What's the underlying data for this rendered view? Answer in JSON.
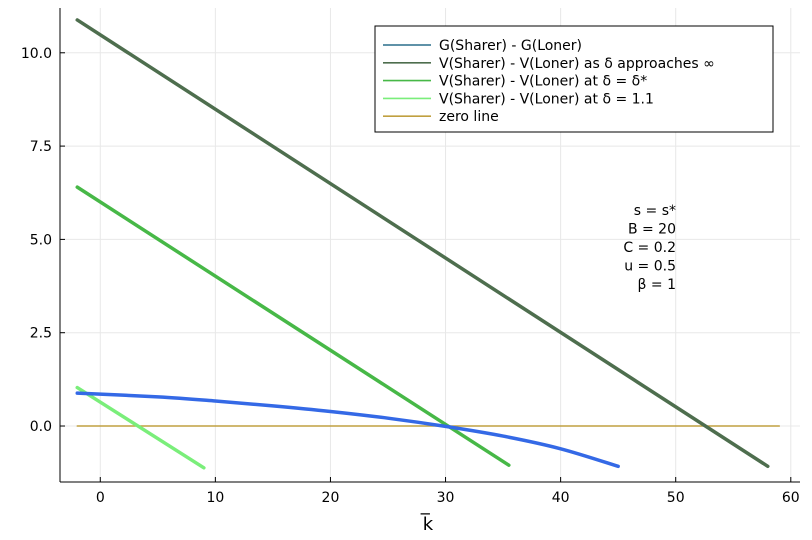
{
  "chart_data": {
    "type": "line",
    "xlabel": "k̅",
    "ylabel": "",
    "title": "",
    "xlim": [
      -3.5,
      60.8
    ],
    "ylim": [
      -1.5,
      11.2
    ],
    "xticks": [
      0,
      10,
      20,
      30,
      40,
      50,
      60
    ],
    "yticks": [
      0.0,
      2.5,
      5.0,
      7.5,
      10.0
    ],
    "xtick_labels": [
      "0",
      "10",
      "20",
      "30",
      "40",
      "50",
      "60"
    ],
    "ytick_labels": [
      "0.0",
      "2.5",
      "5.0",
      "7.5",
      "10.0"
    ],
    "grid": true,
    "legend_position": "top-right",
    "series": [
      {
        "name": "G(Sharer) - G(Loner)",
        "color": "#3469e6",
        "legend_color": "#2a6e8c",
        "x": [
          -2,
          5,
          10,
          15,
          20,
          25,
          30,
          35,
          40,
          45
        ],
        "y": [
          0.88,
          0.78,
          0.67,
          0.54,
          0.39,
          0.21,
          -0.01,
          -0.27,
          -0.61,
          -1.08
        ]
      },
      {
        "name": "V(Sharer) - V(Loner) as δ approaches ∞",
        "color": "#4e6e4e",
        "legend_color": "#4e6e4e",
        "x": [
          -2,
          58
        ],
        "y": [
          10.88,
          -1.08
        ]
      },
      {
        "name": "V(Sharer) - V(Loner) at δ = δ*",
        "color": "#47b847",
        "legend_color": "#47b847",
        "x": [
          -2,
          35.5
        ],
        "y": [
          6.4,
          -1.05
        ]
      },
      {
        "name": "V(Sharer) - V(Loner) at δ = 1.1",
        "color": "#7aee7a",
        "legend_color": "#7aee7a",
        "x": [
          -2,
          9
        ],
        "y": [
          1.03,
          -1.12
        ]
      },
      {
        "name": "zero line",
        "color": "#c0a040",
        "legend_color": "#c0a040",
        "x": [
          -2,
          59
        ],
        "y": [
          0,
          0
        ]
      }
    ],
    "annotations": [
      "s = s*",
      "B = 20",
      "C = 0.2",
      "u = 0.5",
      "β = 1"
    ]
  }
}
